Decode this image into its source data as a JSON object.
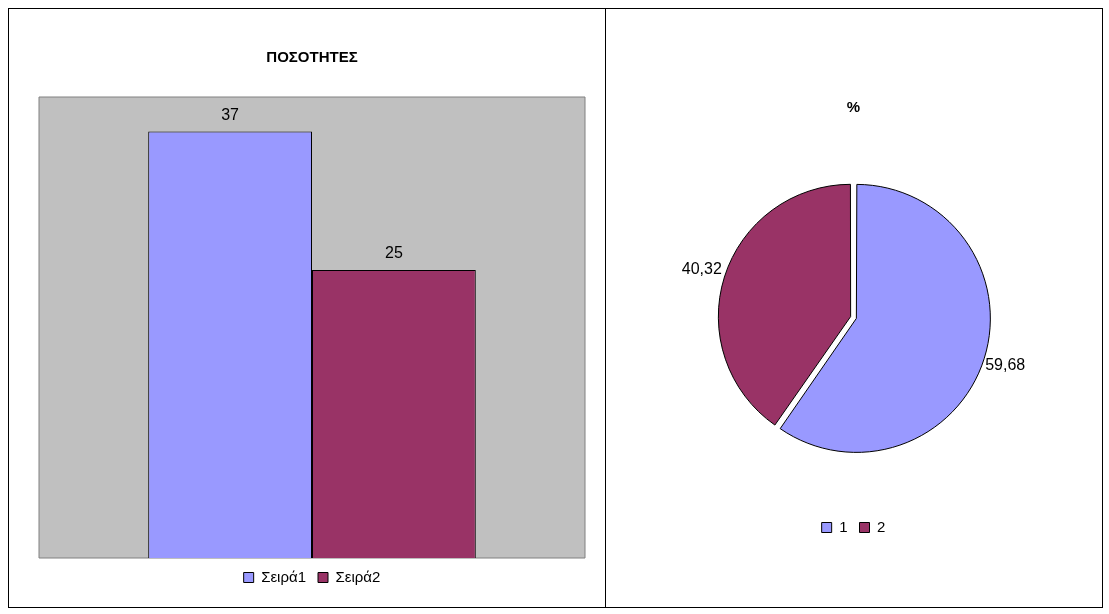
{
  "chart_data": [
    {
      "type": "bar",
      "title": "ΠΟΣΟΤΗΤΕΣ",
      "categories": [
        null
      ],
      "series": [
        {
          "name": "Σειρά1",
          "color": "#9999ff",
          "values": [
            37
          ]
        },
        {
          "name": "Σειρά2",
          "color": "#993366",
          "values": [
            25
          ]
        }
      ],
      "data_labels": true,
      "legend": "bottom"
    },
    {
      "type": "pie",
      "title": "%",
      "categories": [
        "1",
        "2"
      ],
      "values": [
        59.68,
        40.32
      ],
      "colors": [
        "#9999ff",
        "#993366"
      ],
      "value_labels": [
        "59,68",
        "40,32"
      ],
      "legend": "bottom"
    }
  ]
}
